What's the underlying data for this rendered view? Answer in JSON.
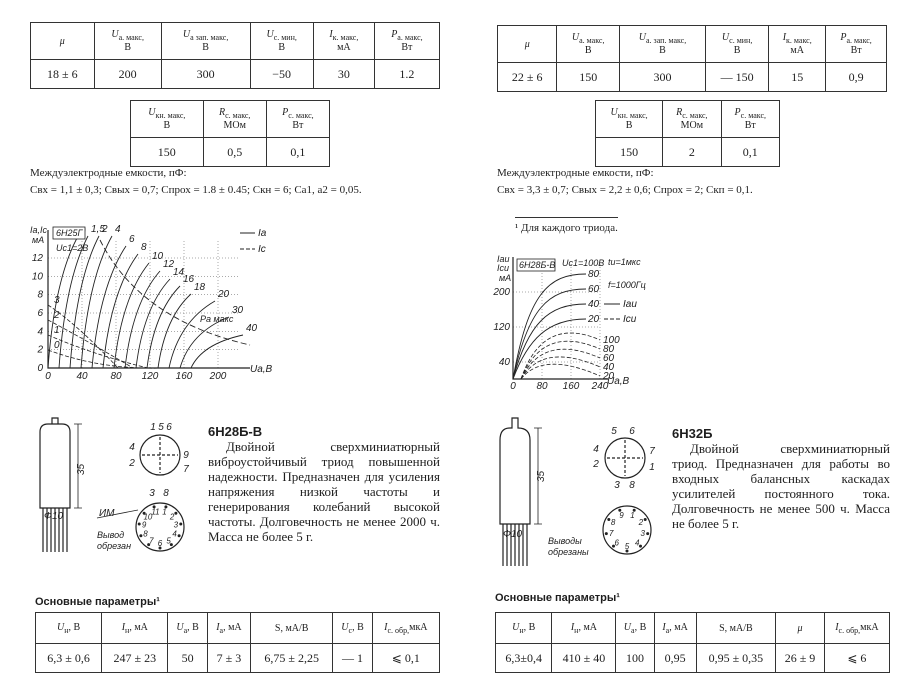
{
  "left": {
    "params_table": {
      "headers": [
        {
          "s": "μ"
        },
        {
          "s": "U",
          "sub": "а. макс,",
          "u": "В"
        },
        {
          "s": "U",
          "sub": "а зап. макс,",
          "u": "В"
        },
        {
          "s": "U",
          "sub": "с. мин,",
          "u": "В"
        },
        {
          "s": "I",
          "sub": "к. макс,",
          "u": "мА"
        },
        {
          "s": "P",
          "sub": "а. макс,",
          "u": "Вт"
        }
      ],
      "row": [
        "18 ± 6",
        "200",
        "300",
        "−50",
        "30",
        "1.2"
      ]
    },
    "params_table_2": {
      "headers": [
        {
          "s": "U",
          "sub": "кн. макс,",
          "u": "В"
        },
        {
          "s": "R",
          "sub": "с. макс,",
          "u": "МОм"
        },
        {
          "s": "P",
          "sub": "с. макс,",
          "u": "Вт"
        }
      ],
      "row": [
        "150",
        "0,5",
        "0,1"
      ]
    },
    "capacitance": {
      "title": "Междуэлектродные емкости, пФ:",
      "text": "Cвх = 1,1 ± 0,3; Cвых = 0,7; Cпрох = 1.8 ± 0.45; Cкн = 6; Cа1, а2 = 0,05."
    },
    "graph": {
      "tube": "6Н25Г",
      "condition": "Uс1=2В",
      "y_label": "Iа,Iс",
      "y_unit": "мА",
      "x_label": "Uа,В",
      "xticks": [
        0,
        40,
        80,
        120,
        160,
        200
      ],
      "yticks": [
        0,
        2,
        4,
        6,
        8,
        10,
        12
      ],
      "curve_labels": [
        "0",
        "1,5",
        "2",
        "4",
        "6",
        "8",
        "10",
        "12",
        "14",
        "16",
        "18",
        "20",
        "30",
        "40"
      ],
      "low_labels": [
        "3",
        "2",
        "1",
        "0"
      ],
      "legend": [
        "Iа",
        "Iс"
      ],
      "note": "Pа макс"
    },
    "tube": {
      "name": "6Н28Б-В",
      "description": "Двойной сверхминиатюрный виброустойчивый триод повышенной надежности. Предназначен для усиления напряжения низкой частоты и генерирования колебаний высокой частоты. Долговечность не менее 2000 ч. Масса не более 5 г.",
      "height": "35",
      "diameter": "Ф10",
      "mark": "ИМ",
      "lead_note": [
        "Вывод",
        "обрезан"
      ],
      "pins": [
        "1",
        "5",
        "6",
        "4",
        "9",
        "2",
        "7",
        "3",
        "8"
      ],
      "base_pins": [
        "1",
        "2",
        "3",
        "4",
        "5",
        "6",
        "7",
        "8",
        "9",
        "10",
        "11"
      ]
    },
    "main_params": {
      "title": "Основные параметры¹",
      "headers": [
        {
          "s": "U",
          "sub": "н",
          "u": ", В"
        },
        {
          "s": "I",
          "sub": "н",
          "u": ", мА"
        },
        {
          "s": "U",
          "sub": "а",
          "u": ", В"
        },
        {
          "s": "I",
          "sub": "а",
          "u": ", мА"
        },
        {
          "s": "S, мА/В"
        },
        {
          "s": "U",
          "sub": "с",
          "u": ", В"
        },
        {
          "s": "I",
          "sub": "с. обр,",
          "u": "мкА"
        }
      ],
      "row": [
        "6,3 ± 0,6",
        "247 ± 23",
        "50",
        "7 ± 3",
        "6,75 ± 2,25",
        "— 1",
        "⩽ 0,1"
      ]
    }
  },
  "right": {
    "params_table": {
      "headers": [
        {
          "s": "μ"
        },
        {
          "s": "U",
          "sub": "а. макс,",
          "u": "В"
        },
        {
          "s": "U",
          "sub": "а. зап. макс,",
          "u": "В"
        },
        {
          "s": "U",
          "sub": "с. мин,",
          "u": "В"
        },
        {
          "s": "I",
          "sub": "к. макс,",
          "u": "мА"
        },
        {
          "s": "P",
          "sub": "а. макс,",
          "u": "Вт"
        }
      ],
      "row": [
        "22 ± 6",
        "150",
        "300",
        "— 150",
        "15",
        "0,9"
      ]
    },
    "params_table_2": {
      "headers": [
        {
          "s": "U",
          "sub": "кн. макс,",
          "u": "В"
        },
        {
          "s": "R",
          "sub": "с. макс,",
          "u": "МОм"
        },
        {
          "s": "P",
          "sub": "с. макс,",
          "u": "Вт"
        }
      ],
      "row": [
        "150",
        "2",
        "0,1"
      ]
    },
    "capacitance": {
      "title": "Междуэлектродные емкости, пФ:",
      "text": "Cвх = 3,3 ± 0,7; Cвых = 2,2 ± 0,6; Cпрох = 2; Cкп = 0,1."
    },
    "footnote": "¹ Для каждого триода.",
    "graph": {
      "tube": "6Н28Б-В",
      "condition": "Uс1=100В",
      "pulse": "tи=1мкс",
      "freq": "f=1000Гц",
      "y_label": [
        "Iаи",
        "Iси"
      ],
      "y_unit": "мА",
      "x_label": "Uа,В",
      "xticks": [
        0,
        80,
        160,
        240
      ],
      "yticks": [
        40,
        120,
        200
      ],
      "curve_labels": [
        "80",
        "60",
        "40",
        "20"
      ],
      "low_labels": [
        "100",
        "80",
        "60",
        "40",
        "20"
      ],
      "legend": [
        "Iаи",
        "Iси"
      ]
    },
    "tube": {
      "name": "6Н32Б",
      "description": "Двойной сверхминиатюрный триод. Предназначен для работы во входных балансных каскадах усилителей постоянного тока. Долговечность не менее 500 ч. Масса не более 5 г.",
      "height": "35",
      "diameter": "Ф10",
      "lead_note": [
        "Выводы",
        "обрезаны"
      ],
      "pins": [
        "5",
        "6",
        "4",
        "7",
        "2",
        "1",
        "3",
        "8"
      ],
      "base_pins": [
        "1",
        "2",
        "3",
        "4",
        "5",
        "6",
        "7",
        "8",
        "9"
      ]
    },
    "main_params": {
      "title": "Основные параметры¹",
      "headers": [
        {
          "s": "U",
          "sub": "н",
          "u": ", В"
        },
        {
          "s": "I",
          "sub": "н",
          "u": ", мА"
        },
        {
          "s": "U",
          "sub": "а",
          "u": ", В"
        },
        {
          "s": "I",
          "sub": "а",
          "u": ", мА"
        },
        {
          "s": "S, мА/В"
        },
        {
          "s": "μ"
        },
        {
          "s": "I",
          "sub": "с. обр,",
          "u": "мкА"
        }
      ],
      "row": [
        "6,3±0,4",
        "410 ± 40",
        "100",
        "0,95",
        "0,95 ± 0,35",
        "26 ± 9",
        "⩽ 6"
      ]
    }
  }
}
